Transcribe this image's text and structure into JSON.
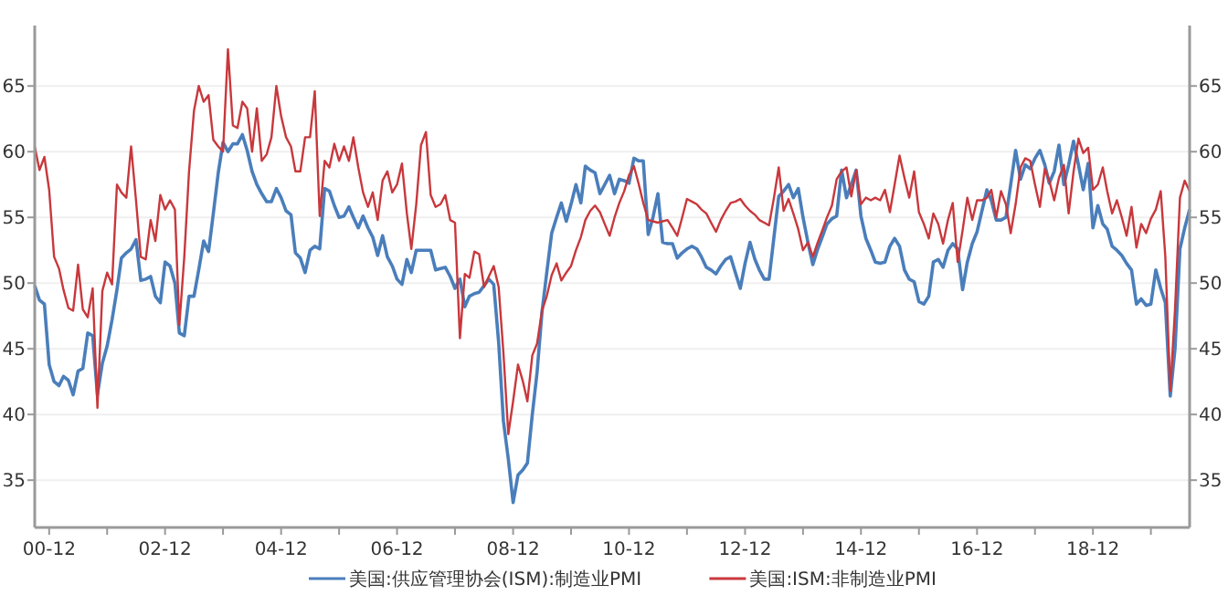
{
  "chart_data": {
    "type": "line",
    "x": [
      "2000-09",
      "2000-10",
      "2000-11",
      "2000-12",
      "2001-01",
      "2001-02",
      "2001-03",
      "2001-04",
      "2001-05",
      "2001-06",
      "2001-07",
      "2001-08",
      "2001-09",
      "2001-10",
      "2001-11",
      "2001-12",
      "2002-01",
      "2002-02",
      "2002-03",
      "2002-04",
      "2002-05",
      "2002-06",
      "2002-07",
      "2002-08",
      "2002-09",
      "2002-10",
      "2002-11",
      "2002-12",
      "2003-01",
      "2003-02",
      "2003-03",
      "2003-04",
      "2003-05",
      "2003-06",
      "2003-07",
      "2003-08",
      "2003-09",
      "2003-10",
      "2003-11",
      "2003-12",
      "2004-01",
      "2004-02",
      "2004-03",
      "2004-04",
      "2004-05",
      "2004-06",
      "2004-07",
      "2004-08",
      "2004-09",
      "2004-10",
      "2004-11",
      "2004-12",
      "2005-01",
      "2005-02",
      "2005-03",
      "2005-04",
      "2005-05",
      "2005-06",
      "2005-07",
      "2005-08",
      "2005-09",
      "2005-10",
      "2005-11",
      "2005-12",
      "2006-01",
      "2006-02",
      "2006-03",
      "2006-04",
      "2006-05",
      "2006-06",
      "2006-07",
      "2006-08",
      "2006-09",
      "2006-10",
      "2006-11",
      "2006-12",
      "2007-01",
      "2007-02",
      "2007-03",
      "2007-04",
      "2007-05",
      "2007-06",
      "2007-07",
      "2007-08",
      "2007-09",
      "2007-10",
      "2007-11",
      "2007-12",
      "2008-01",
      "2008-02",
      "2008-03",
      "2008-04",
      "2008-05",
      "2008-06",
      "2008-07",
      "2008-08",
      "2008-09",
      "2008-10",
      "2008-11",
      "2008-12",
      "2009-01",
      "2009-02",
      "2009-03",
      "2009-04",
      "2009-05",
      "2009-06",
      "2009-07",
      "2009-08",
      "2009-09",
      "2009-10",
      "2009-11",
      "2009-12",
      "2010-01",
      "2010-02",
      "2010-03",
      "2010-04",
      "2010-05",
      "2010-06",
      "2010-07",
      "2010-08",
      "2010-09",
      "2010-10",
      "2010-11",
      "2010-12",
      "2011-01",
      "2011-02",
      "2011-03",
      "2011-04",
      "2011-05",
      "2011-06",
      "2011-07",
      "2011-08",
      "2011-09",
      "2011-10",
      "2011-11",
      "2011-12",
      "2012-01",
      "2012-02",
      "2012-03",
      "2012-04",
      "2012-05",
      "2012-06",
      "2012-07",
      "2012-08",
      "2012-09",
      "2012-10",
      "2012-11",
      "2012-12",
      "2013-01",
      "2013-02",
      "2013-03",
      "2013-04",
      "2013-05",
      "2013-06",
      "2013-07",
      "2013-08",
      "2013-09",
      "2013-10",
      "2013-11",
      "2013-12",
      "2014-01",
      "2014-02",
      "2014-03",
      "2014-04",
      "2014-05",
      "2014-06",
      "2014-07",
      "2014-08",
      "2014-09",
      "2014-10",
      "2014-11",
      "2014-12",
      "2015-01",
      "2015-02",
      "2015-03",
      "2015-04",
      "2015-05",
      "2015-06",
      "2015-07",
      "2015-08",
      "2015-09",
      "2015-10",
      "2015-11",
      "2015-12",
      "2016-01",
      "2016-02",
      "2016-03",
      "2016-04",
      "2016-05",
      "2016-06",
      "2016-07",
      "2016-08",
      "2016-09",
      "2016-10",
      "2016-11",
      "2016-12",
      "2017-01",
      "2017-02",
      "2017-03",
      "2017-04",
      "2017-05",
      "2017-06",
      "2017-07",
      "2017-08",
      "2017-09",
      "2017-10",
      "2017-11",
      "2017-12",
      "2018-01",
      "2018-02",
      "2018-03",
      "2018-04",
      "2018-05",
      "2018-06",
      "2018-07",
      "2018-08",
      "2018-09",
      "2018-10",
      "2018-11",
      "2018-12",
      "2019-01",
      "2019-02",
      "2019-03",
      "2019-04",
      "2019-05",
      "2019-06",
      "2019-07",
      "2019-08",
      "2019-09",
      "2019-10",
      "2019-11",
      "2019-12",
      "2020-01",
      "2020-02",
      "2020-03",
      "2020-04",
      "2020-05",
      "2020-06",
      "2020-07",
      "2020-08"
    ],
    "series": [
      {
        "name": "美国:供应管理协会(ISM):制造业PMI",
        "color": "#4a7ebb",
        "values": [
          49.8,
          48.7,
          48.4,
          43.8,
          42.5,
          42.2,
          42.9,
          42.6,
          41.5,
          43.3,
          43.5,
          46.2,
          46.0,
          41.5,
          43.9,
          45.2,
          47.2,
          49.5,
          51.9,
          52.3,
          52.6,
          53.3,
          50.2,
          50.3,
          50.5,
          49.0,
          48.5,
          51.6,
          51.3,
          50.0,
          46.2,
          46.0,
          49.0,
          49.0,
          51.0,
          53.2,
          52.4,
          55.3,
          58.4,
          60.7,
          60.0,
          60.6,
          60.6,
          61.3,
          60.1,
          58.5,
          57.5,
          56.8,
          56.2,
          56.2,
          57.2,
          56.5,
          55.5,
          55.2,
          52.3,
          51.9,
          50.8,
          52.5,
          52.8,
          52.6,
          57.2,
          57.0,
          55.9,
          55.0,
          55.1,
          55.8,
          55.0,
          54.2,
          55.1,
          54.2,
          53.5,
          52.1,
          53.6,
          52.0,
          51.3,
          50.3,
          49.9,
          51.8,
          50.8,
          52.5,
          52.5,
          52.5,
          52.5,
          51.0,
          51.1,
          51.2,
          50.5,
          49.6,
          50.3,
          48.2,
          49.0,
          49.2,
          49.3,
          49.8,
          50.3,
          49.9,
          45.5,
          39.5,
          36.6,
          33.3,
          35.4,
          35.8,
          36.3,
          40.0,
          43.2,
          47.8,
          50.8,
          53.8,
          55.0,
          56.1,
          54.7,
          56.0,
          57.5,
          56.1,
          58.9,
          58.6,
          58.4,
          56.8,
          57.5,
          58.2,
          56.8,
          57.9,
          57.8,
          57.6,
          59.5,
          59.3,
          59.3,
          53.7,
          55.0,
          56.8,
          53.1,
          53.0,
          53.0,
          51.9,
          52.3,
          52.6,
          52.8,
          52.6,
          52.0,
          51.2,
          51.0,
          50.7,
          51.3,
          51.8,
          52.0,
          50.8,
          49.6,
          51.5,
          53.1,
          51.8,
          51.0,
          50.3,
          50.3,
          53.5,
          56.6,
          57.0,
          57.5,
          56.5,
          57.2,
          55.0,
          53.1,
          51.4,
          52.5,
          53.5,
          54.5,
          54.9,
          55.1,
          58.6,
          56.5,
          57.5,
          58.6,
          55.1,
          53.4,
          52.5,
          51.6,
          51.5,
          51.6,
          52.8,
          53.4,
          52.8,
          51.0,
          50.3,
          50.1,
          48.6,
          48.4,
          49.0,
          51.6,
          51.8,
          51.2,
          52.5,
          53.0,
          52.6,
          49.5,
          51.6,
          53.0,
          53.9,
          55.5,
          57.1,
          56.3,
          54.8,
          54.8,
          55.0,
          57.5,
          60.1,
          57.9,
          59.0,
          58.7,
          59.5,
          60.1,
          59.0,
          57.6,
          58.5,
          60.5,
          57.5,
          59.0,
          60.8,
          59.0,
          57.1,
          59.1,
          54.2,
          55.9,
          54.5,
          54.1,
          52.8,
          52.5,
          52.1,
          51.5,
          51.0,
          48.4,
          48.8,
          48.3,
          48.4,
          51.0,
          49.6,
          48.5,
          41.4,
          45.0,
          52.6,
          54.2,
          55.6
        ]
      },
      {
        "name": "美国:ISM:非制造业PMI",
        "color": "#c8383c",
        "values": [
          60.4,
          58.6,
          59.6,
          57.1,
          52.0,
          51.1,
          49.5,
          48.1,
          47.9,
          51.4,
          48.0,
          47.4,
          49.6,
          40.5,
          49.4,
          50.8,
          49.9,
          57.5,
          56.9,
          56.5,
          60.4,
          56.3,
          52.0,
          51.8,
          54.8,
          53.2,
          56.7,
          55.6,
          56.3,
          55.6,
          46.8,
          52.0,
          58.5,
          63.1,
          65.0,
          63.8,
          64.3,
          60.9,
          60.4,
          60.0,
          67.8,
          62.0,
          61.8,
          63.8,
          63.3,
          60.0,
          63.3,
          59.3,
          59.8,
          61.1,
          65.0,
          62.7,
          61.1,
          60.4,
          58.5,
          58.5,
          61.1,
          61.1,
          64.6,
          55.1,
          59.3,
          58.8,
          60.6,
          59.3,
          60.4,
          59.3,
          61.1,
          58.8,
          56.9,
          55.8,
          56.9,
          54.8,
          57.8,
          58.5,
          56.9,
          57.5,
          59.1,
          55.3,
          52.6,
          56.0,
          60.5,
          61.5,
          56.7,
          55.8,
          56.0,
          56.7,
          54.8,
          54.6,
          45.8,
          50.7,
          50.4,
          52.4,
          52.2,
          49.7,
          50.5,
          51.3,
          49.7,
          44.7,
          38.5,
          41.0,
          43.8,
          42.5,
          41.0,
          44.5,
          45.4,
          47.9,
          49.0,
          50.6,
          51.5,
          50.2,
          50.8,
          51.3,
          52.5,
          53.5,
          54.8,
          55.5,
          55.9,
          55.4,
          54.5,
          53.6,
          55.0,
          56.1,
          57.0,
          58.2,
          58.9,
          57.5,
          56.1,
          54.8,
          54.7,
          54.6,
          54.7,
          54.8,
          54.2,
          53.6,
          55.0,
          56.4,
          56.2,
          56.0,
          55.6,
          55.3,
          54.6,
          53.9,
          54.8,
          55.5,
          56.1,
          56.2,
          56.4,
          55.9,
          55.5,
          55.2,
          54.8,
          54.6,
          54.4,
          56.5,
          58.8,
          55.5,
          56.4,
          55.3,
          54.1,
          52.5,
          53.1,
          52.0,
          53.0,
          54.0,
          55.0,
          55.9,
          57.9,
          58.5,
          58.8,
          56.6,
          58.6,
          56.0,
          56.5,
          56.3,
          56.5,
          56.3,
          57.1,
          55.4,
          57.5,
          59.7,
          58.0,
          56.5,
          58.5,
          55.4,
          54.5,
          53.4,
          55.3,
          54.5,
          53.0,
          54.8,
          56.1,
          51.6,
          54.0,
          56.5,
          54.8,
          56.3,
          56.3,
          56.5,
          57.1,
          55.0,
          57.0,
          56.0,
          53.8,
          56.0,
          58.8,
          59.5,
          59.3,
          57.5,
          55.8,
          58.7,
          57.8,
          56.3,
          58.0,
          59.0,
          55.3,
          58.5,
          61.0,
          59.9,
          60.3,
          57.1,
          57.5,
          58.8,
          57.0,
          55.3,
          56.3,
          55.0,
          53.6,
          55.8,
          52.7,
          54.5,
          53.8,
          54.9,
          55.6,
          57.0,
          52.0,
          41.8,
          48.0,
          56.5,
          57.8,
          57.0
        ]
      }
    ],
    "xlim": [
      "2000-09",
      "2020-08"
    ],
    "xticks": [
      {
        "value": "2000-12",
        "label": "00-12"
      },
      {
        "value": "2001-12",
        "label": null
      },
      {
        "value": "2002-12",
        "label": "02-12"
      },
      {
        "value": "2003-12",
        "label": null
      },
      {
        "value": "2004-12",
        "label": "04-12"
      },
      {
        "value": "2005-12",
        "label": null
      },
      {
        "value": "2006-12",
        "label": "06-12"
      },
      {
        "value": "2007-12",
        "label": null
      },
      {
        "value": "2008-12",
        "label": "08-12"
      },
      {
        "value": "2009-12",
        "label": null
      },
      {
        "value": "2010-12",
        "label": "10-12"
      },
      {
        "value": "2011-12",
        "label": null
      },
      {
        "value": "2012-12",
        "label": "12-12"
      },
      {
        "value": "2013-12",
        "label": null
      },
      {
        "value": "2014-12",
        "label": "14-12"
      },
      {
        "value": "2015-12",
        "label": null
      },
      {
        "value": "2016-12",
        "label": "16-12"
      },
      {
        "value": "2017-12",
        "label": null
      },
      {
        "value": "2018-12",
        "label": "18-12"
      },
      {
        "value": "2019-12",
        "label": null
      }
    ],
    "ylim": [
      31.4,
      69.6
    ],
    "yticks": [
      35,
      40,
      45,
      50,
      55,
      60,
      65
    ],
    "y2lim": [
      31.4,
      69.6
    ],
    "y2ticks": [
      35,
      40,
      45,
      50,
      55,
      60,
      65
    ],
    "grid": "y",
    "legend": "bottom"
  }
}
